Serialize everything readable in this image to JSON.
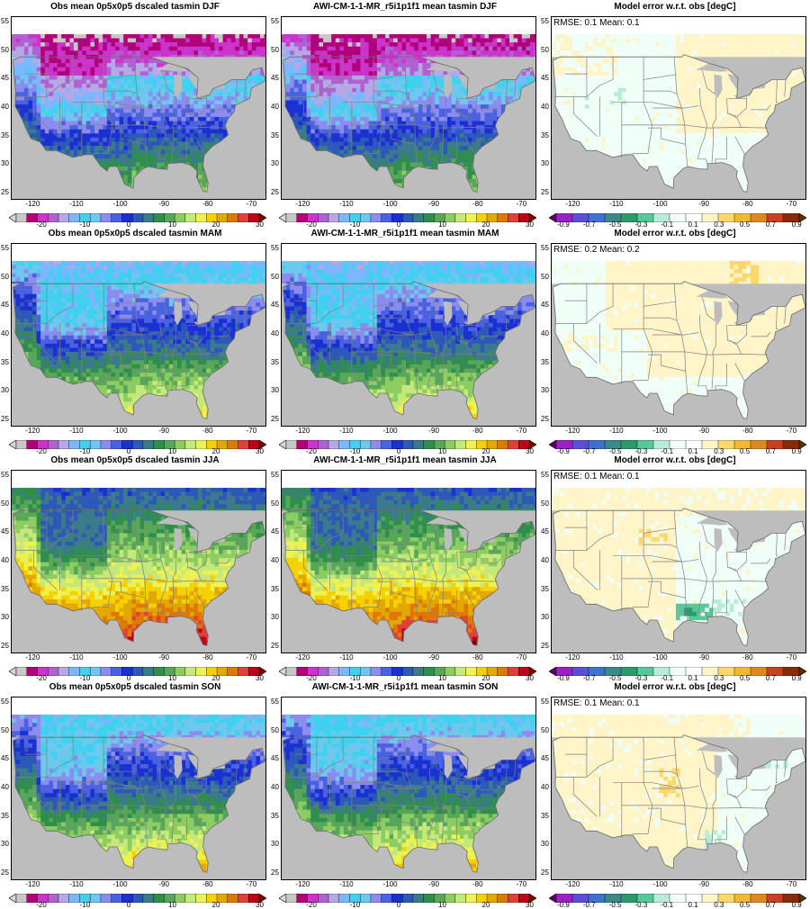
{
  "figure": {
    "y_ticks": [
      "55",
      "50",
      "45",
      "40",
      "35",
      "30",
      "25"
    ],
    "x_ticks": [
      "-120",
      "-110",
      "-100",
      "-90",
      "-80",
      "-70"
    ],
    "colors": {
      "land_mask": "#bdbdbd",
      "state_lines": "#808080",
      "ocean": "#bdbdbd"
    },
    "abs_scale": {
      "labels": [
        "-20",
        "-10",
        "0",
        "10",
        "20",
        "30"
      ],
      "colors": [
        "#d9d9d9",
        "#c8c8c8",
        "#b0007a",
        "#cc33cc",
        "#b060d0",
        "#b4a8e6",
        "#7cb6ff",
        "#40d0f0",
        "#6ec8ee",
        "#8c8cf0",
        "#4a62e0",
        "#1a30d0",
        "#2c58b8",
        "#3a7a8a",
        "#2e8e4a",
        "#58a65a",
        "#8ccc60",
        "#c4e87a",
        "#eef250",
        "#f7d000",
        "#e2a800",
        "#e07800",
        "#e0403a",
        "#c00018",
        "#7a0000"
      ]
    },
    "diff_scale": {
      "labels": [
        "-0.9",
        "-0.7",
        "-0.5",
        "-0.3",
        "-0.1",
        "0.1",
        "0.3",
        "0.5",
        "0.7",
        "0.9"
      ],
      "colors": [
        "#5a005a",
        "#9a20c8",
        "#5a50d8",
        "#4070d0",
        "#3a8a8a",
        "#2a9a6a",
        "#56c89a",
        "#b6ecd8",
        "#f0fff8",
        "#ffffff",
        "#fff5c8",
        "#ffd86a",
        "#f2b830",
        "#e08820",
        "#c84020",
        "#8a2a0a",
        "#5a3000"
      ]
    }
  },
  "panels": [
    {
      "title": "Obs mean 0p5x0p5 dscaled tasmin DJF",
      "kind": "abs",
      "season": "DJF"
    },
    {
      "title": "AWI-CM-1-1-MR_r5i1p1f1 mean tasmin DJF",
      "kind": "abs",
      "season": "DJF"
    },
    {
      "title": "Model error w.r.t. obs [degC]",
      "kind": "diff",
      "season": "DJF",
      "stats": "RMSE: 0.1  Mean: 0.1"
    },
    {
      "title": "Obs mean 0p5x0p5 dscaled tasmin MAM",
      "kind": "abs",
      "season": "MAM"
    },
    {
      "title": "AWI-CM-1-1-MR_r5i1p1f1 mean tasmin MAM",
      "kind": "abs",
      "season": "MAM"
    },
    {
      "title": "Model error w.r.t. obs [degC]",
      "kind": "diff",
      "season": "MAM",
      "stats": "RMSE: 0.2  Mean: 0.2"
    },
    {
      "title": "Obs mean 0p5x0p5 dscaled tasmin JJA",
      "kind": "abs",
      "season": "JJA"
    },
    {
      "title": "AWI-CM-1-1-MR_r5i1p1f1 mean tasmin JJA",
      "kind": "abs",
      "season": "JJA"
    },
    {
      "title": "Model error w.r.t. obs [degC]",
      "kind": "diff",
      "season": "JJA",
      "stats": "RMSE: 0.1  Mean: 0.1"
    },
    {
      "title": "Obs mean 0p5x0p5 dscaled tasmin SON",
      "kind": "abs",
      "season": "SON"
    },
    {
      "title": "AWI-CM-1-1-MR_r5i1p1f1 mean tasmin SON",
      "kind": "abs",
      "season": "SON"
    },
    {
      "title": "Model error w.r.t. obs [degC]",
      "kind": "diff",
      "season": "SON",
      "stats": "RMSE: 0.1  Mean: 0.1"
    }
  ]
}
